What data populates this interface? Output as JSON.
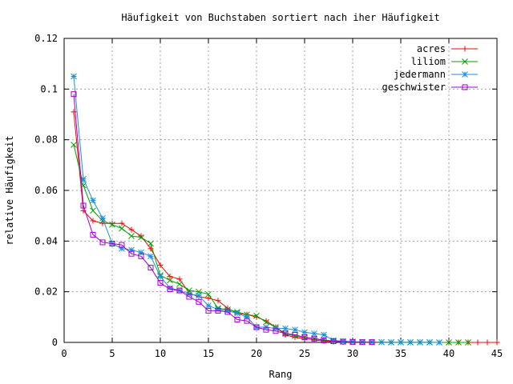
{
  "chart_data": {
    "type": "line",
    "title": "Häufigkeit von Buchstaben sortiert nach iher Häufigkeit",
    "xlabel": "Rang",
    "ylabel": "relative Häufigkeit",
    "xlim": [
      0,
      45
    ],
    "ylim": [
      0,
      0.12
    ],
    "xticks": [
      0,
      5,
      10,
      15,
      20,
      25,
      30,
      35,
      40,
      45
    ],
    "yticks": [
      0,
      0.02,
      0.04,
      0.06,
      0.08,
      0.1,
      0.12
    ],
    "xtick_labels": [
      "0",
      "5",
      "10",
      "15",
      "20",
      "25",
      "30",
      "35",
      "40",
      "45"
    ],
    "ytick_labels": [
      "0",
      "0.02",
      "0.04",
      "0.06",
      "0.08",
      "0.1",
      "0.12"
    ],
    "grid": true,
    "legend_position": "top-right",
    "series": [
      {
        "name": "acres",
        "color": "#ff0000",
        "marker": "plus",
        "x": [
          1,
          2,
          3,
          4,
          5,
          6,
          7,
          8,
          9,
          10,
          11,
          12,
          13,
          14,
          15,
          16,
          17,
          18,
          19,
          20,
          21,
          22,
          23,
          24,
          25,
          26,
          27,
          28,
          29,
          30,
          31,
          32,
          33,
          34,
          35,
          36,
          37,
          38,
          39,
          40,
          41,
          42,
          43,
          44,
          45
        ],
        "values": [
          0.091,
          0.052,
          0.048,
          0.047,
          0.047,
          0.047,
          0.0445,
          0.042,
          0.037,
          0.0305,
          0.026,
          0.025,
          0.0195,
          0.018,
          0.0175,
          0.0165,
          0.0135,
          0.0115,
          0.011,
          0.01,
          0.0085,
          0.006,
          0.003,
          0.002,
          0.0015,
          0.001,
          0.0005,
          0.0003,
          0.0002,
          0.0001,
          0.0001,
          0.0001,
          0.0001,
          0,
          0,
          0,
          0,
          0,
          0,
          0,
          0,
          0,
          0,
          0,
          0
        ]
      },
      {
        "name": "liliom",
        "color": "#00a000",
        "marker": "cross",
        "x": [
          1,
          2,
          3,
          4,
          5,
          6,
          7,
          8,
          9,
          10,
          11,
          12,
          13,
          14,
          15,
          16,
          17,
          18,
          19,
          20,
          21,
          22,
          23,
          24,
          25,
          26,
          27,
          28,
          29,
          30,
          31,
          32,
          33,
          34,
          35,
          36,
          37,
          38,
          39,
          40,
          41,
          42
        ],
        "values": [
          0.078,
          0.062,
          0.052,
          0.048,
          0.0465,
          0.045,
          0.042,
          0.0415,
          0.039,
          0.0265,
          0.0245,
          0.023,
          0.0205,
          0.02,
          0.019,
          0.0135,
          0.013,
          0.012,
          0.011,
          0.0105,
          0.008,
          0.006,
          0.0035,
          0.0025,
          0.002,
          0.0015,
          0.001,
          0.0005,
          0.0003,
          0.0002,
          0.0001,
          0.0001,
          0.0001,
          0,
          0,
          0,
          0,
          0,
          0,
          0,
          0,
          0
        ]
      },
      {
        "name": "jedermann",
        "color": "#1a8fe0",
        "marker": "star",
        "x": [
          1,
          2,
          3,
          4,
          5,
          6,
          7,
          8,
          9,
          10,
          11,
          12,
          13,
          14,
          15,
          16,
          17,
          18,
          19,
          20,
          21,
          22,
          23,
          24,
          25,
          26,
          27,
          28,
          29,
          30,
          31,
          32,
          33,
          34,
          35,
          36,
          37,
          38,
          39
        ],
        "values": [
          0.105,
          0.0645,
          0.056,
          0.049,
          0.039,
          0.037,
          0.0365,
          0.0355,
          0.034,
          0.026,
          0.0215,
          0.0205,
          0.019,
          0.0185,
          0.0145,
          0.013,
          0.0125,
          0.0115,
          0.01,
          0.006,
          0.006,
          0.0055,
          0.0055,
          0.005,
          0.004,
          0.0035,
          0.003,
          0.0008,
          0.0005,
          0.0003,
          0.0002,
          0.0002,
          0.0001,
          0.0001,
          0.0001,
          0.0001,
          0.0001,
          0.0001,
          0
        ]
      },
      {
        "name": "geschwister",
        "color": "#a000d0",
        "marker": "square",
        "x": [
          1,
          2,
          3,
          4,
          5,
          6,
          7,
          8,
          9,
          10,
          11,
          12,
          13,
          14,
          15,
          16,
          17,
          18,
          19,
          20,
          21,
          22,
          23,
          24,
          25,
          26,
          27,
          28,
          29,
          30,
          31,
          32
        ],
        "values": [
          0.098,
          0.054,
          0.0425,
          0.0395,
          0.039,
          0.0385,
          0.035,
          0.034,
          0.0295,
          0.0235,
          0.021,
          0.0205,
          0.018,
          0.016,
          0.0125,
          0.0125,
          0.012,
          0.009,
          0.0085,
          0.006,
          0.005,
          0.0045,
          0.0035,
          0.003,
          0.002,
          0.0015,
          0.0008,
          0.0005,
          0.0003,
          0.0002,
          0.0001,
          0.0001
        ]
      }
    ]
  }
}
